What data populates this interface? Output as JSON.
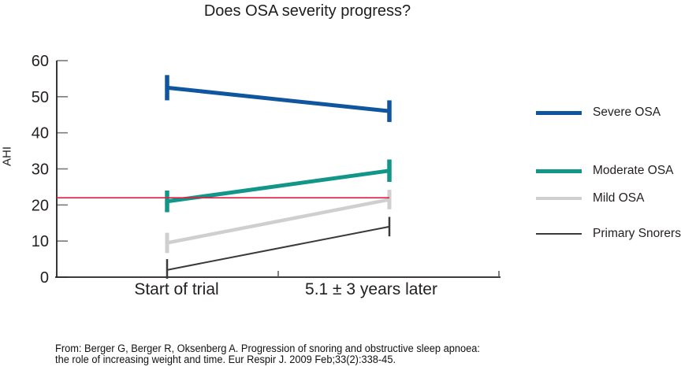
{
  "chart_data": {
    "type": "line",
    "title": "Does OSA severity progress?",
    "ylabel": "AHI",
    "xlabel": "",
    "ylim": [
      0,
      60
    ],
    "yticks": [
      0,
      10,
      20,
      30,
      40,
      50,
      60
    ],
    "categories": [
      "Start of trial",
      "5.1 ± 3 years later"
    ],
    "grid": false,
    "legend_position": "right",
    "series": [
      {
        "name": "Severe OSA",
        "color": "#0f569e",
        "stroke_width": 5,
        "values": [
          52.5,
          46
        ],
        "errors": [
          3.5,
          3
        ]
      },
      {
        "name": "Moderate OSA",
        "color": "#12968a",
        "stroke_width": 5,
        "values": [
          21,
          29.5
        ],
        "errors": [
          3,
          3.1
        ]
      },
      {
        "name": "Mild OSA",
        "color": "#cfcfcf",
        "stroke_width": 4.5,
        "values": [
          9.5,
          21.5
        ],
        "errors": [
          2.8,
          2.7
        ]
      },
      {
        "name": "Primary Snorers",
        "color": "#3a3a3a",
        "stroke_width": 2,
        "values": [
          2,
          14
        ],
        "errors": [
          3,
          2.7
        ]
      }
    ],
    "reference_line": {
      "value": 22,
      "color": "#e21c40"
    },
    "legend": {
      "entries": [
        "Severe OSA",
        "Moderate OSA",
        "Mild OSA",
        "Primary Snorers"
      ]
    },
    "axis_color": "#231f20",
    "tick_color": "#7a7a7a"
  },
  "footer": {
    "lines": [
      "From: Berger G, Berger R, Oksenberg A. Progression of snoring and obstructive sleep apnoea:",
      "the role of increasing weight and time. Eur Respir J. 2009 Feb;33(2):338-45."
    ]
  }
}
